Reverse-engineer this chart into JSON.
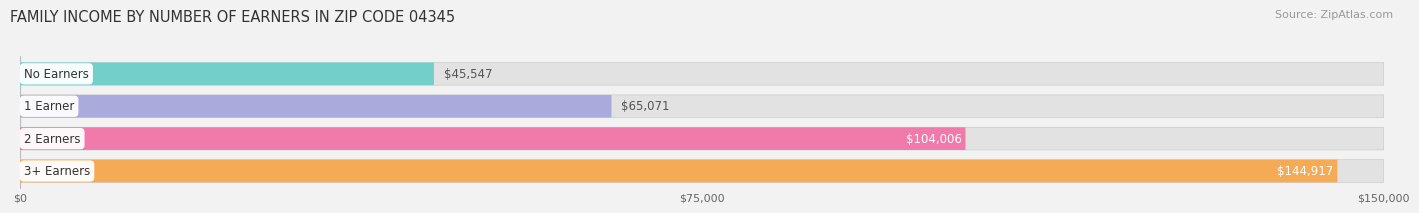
{
  "title": "FAMILY INCOME BY NUMBER OF EARNERS IN ZIP CODE 04345",
  "source": "Source: ZipAtlas.com",
  "categories": [
    "No Earners",
    "1 Earner",
    "2 Earners",
    "3+ Earners"
  ],
  "values": [
    45547,
    65071,
    104006,
    144917
  ],
  "value_labels": [
    "$45,547",
    "$65,071",
    "$104,006",
    "$144,917"
  ],
  "bar_colors": [
    "#72cfc9",
    "#aaaadd",
    "#f07aaa",
    "#f5aa55"
  ],
  "xmax": 150000,
  "xticks": [
    0,
    75000,
    150000
  ],
  "xtick_labels": [
    "$0",
    "$75,000",
    "$150,000"
  ],
  "background_color": "#f2f2f2",
  "bar_bg_color": "#e2e2e2",
  "title_fontsize": 10.5,
  "source_fontsize": 8,
  "label_fontsize": 8.5,
  "value_fontsize": 8.5,
  "value_color_inside": [
    "#555555",
    "#555555",
    "#ffffff",
    "#ffffff"
  ],
  "value_inside": [
    false,
    false,
    true,
    true
  ]
}
